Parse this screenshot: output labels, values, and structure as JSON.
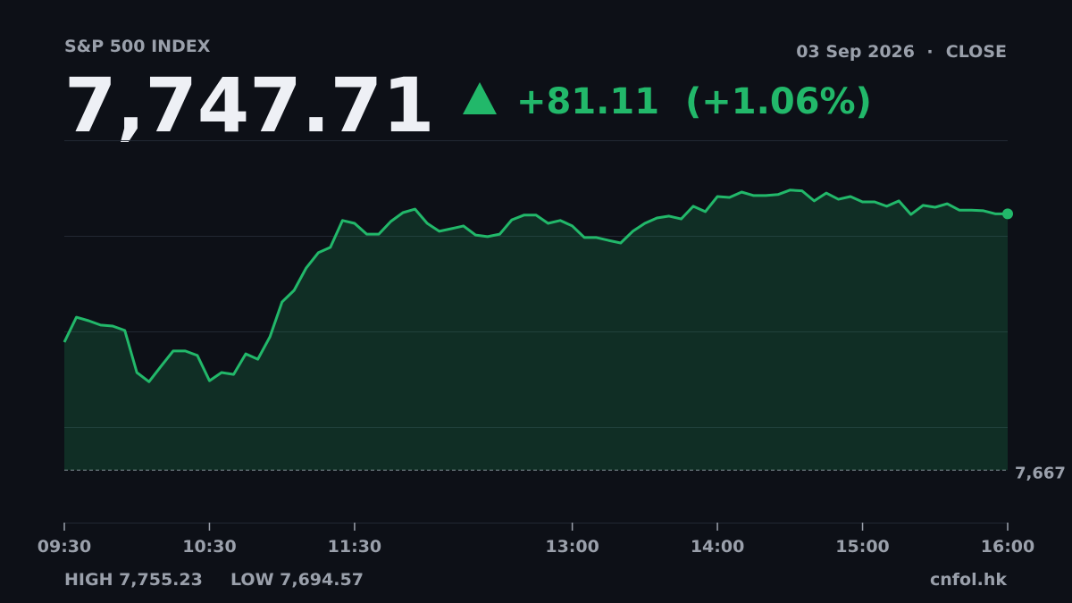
{
  "header": {
    "symbol": "S&P 500 INDEX",
    "date": "03 Sep 2026",
    "separator": "·",
    "status": "CLOSE",
    "price": "7,747.71",
    "change": "+81.11",
    "change_pct": "(+1.06%)"
  },
  "chart_data": {
    "type": "line",
    "color": "#22b86a",
    "area": true,
    "x": [
      "09:30",
      "09:35",
      "09:40",
      "09:45",
      "09:50",
      "09:55",
      "10:00",
      "10:05",
      "10:10",
      "10:15",
      "10:20",
      "10:25",
      "10:30",
      "10:35",
      "10:40",
      "10:45",
      "10:50",
      "10:55",
      "11:00",
      "11:05",
      "11:10",
      "11:15",
      "11:20",
      "11:25",
      "11:30",
      "11:35",
      "11:40",
      "11:45",
      "11:50",
      "11:55",
      "12:00",
      "12:05",
      "12:10",
      "12:15",
      "12:20",
      "12:25",
      "12:30",
      "12:35",
      "12:40",
      "12:45",
      "12:50",
      "12:55",
      "13:00",
      "13:05",
      "13:10",
      "13:15",
      "13:20",
      "13:25",
      "13:30",
      "13:35",
      "13:40",
      "13:45",
      "13:50",
      "13:55",
      "14:00",
      "14:05",
      "14:10",
      "14:15",
      "14:20",
      "14:25",
      "14:30",
      "14:35",
      "14:40",
      "14:45",
      "14:50",
      "14:55",
      "15:00",
      "15:05",
      "15:10",
      "15:15",
      "15:20",
      "15:25",
      "15:30",
      "15:35",
      "15:40",
      "15:45",
      "15:50",
      "15:55",
      "16:00"
    ],
    "values": [
      7707.1,
      7715.0,
      7713.9,
      7712.5,
      7712.2,
      7710.8,
      7697.5,
      7694.57,
      7699.5,
      7704.3,
      7704.3,
      7702.9,
      7694.9,
      7697.5,
      7696.9,
      7703.4,
      7701.7,
      7708.8,
      7719.8,
      7723.5,
      7730.6,
      7735.4,
      7737.1,
      7745.6,
      7744.7,
      7741.3,
      7741.3,
      7745.3,
      7748.1,
      7749.2,
      7744.7,
      7742.2,
      7743.0,
      7743.9,
      7741.0,
      7740.5,
      7741.3,
      7745.8,
      7747.3,
      7747.3,
      7744.7,
      7745.6,
      7743.9,
      7740.2,
      7740.2,
      7739.3,
      7738.5,
      7742.2,
      7744.7,
      7746.4,
      7747.0,
      7746.1,
      7750.1,
      7748.4,
      7753.2,
      7752.9,
      7754.6,
      7753.5,
      7753.5,
      7753.8,
      7755.23,
      7755.0,
      7751.8,
      7754.3,
      7752.3,
      7753.2,
      7751.5,
      7751.5,
      7750.1,
      7751.8,
      7747.5,
      7750.4,
      7749.8,
      7750.9,
      7748.9,
      7748.9,
      7748.7,
      7747.71,
      7747.71
    ],
    "xlim": [
      "09:30",
      "16:00"
    ],
    "xticks": [
      "09:30",
      "10:30",
      "11:30",
      "13:00",
      "14:00",
      "15:00",
      "16:00"
    ],
    "ylim": [
      7650,
      7771
    ],
    "reference": {
      "value": 7666.6,
      "label": "7,667"
    }
  },
  "footer": {
    "high": "HIGH 7,755.23",
    "low": "LOW 7,694.57",
    "source": "cnfol.hk"
  }
}
